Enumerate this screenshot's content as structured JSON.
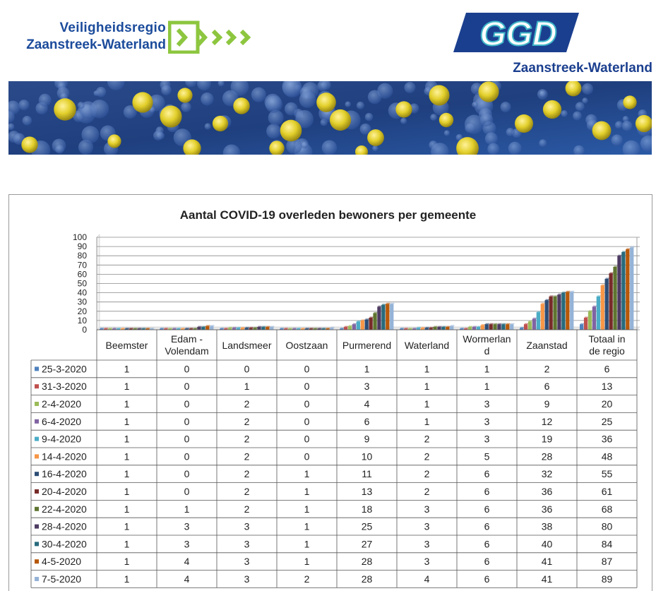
{
  "header": {
    "left_logo": {
      "line1": "Veiligheidsregio",
      "line2": "Zaanstreek-Waterland"
    },
    "right_logo": {
      "mark": "GGD",
      "subtitle": "Zaanstreek-Waterland"
    }
  },
  "colors": {
    "brand_blue": "#1b4b9b",
    "brand_green": "#8dc63f",
    "ggd_blue": "#1b3f8f",
    "ggd_teal": "#3fb6c8"
  },
  "chart_data": {
    "type": "bar",
    "title": "Aantal COVID-19  overleden bewoners per gemeente",
    "categories": [
      "Beemster",
      "Edam -Volendam",
      "Landsmeer",
      "Oostzaan",
      "Purmerend",
      "Waterland",
      "Wormerland",
      "Zaanstad",
      "Totaal in de regio"
    ],
    "category_display": [
      [
        "Beemster"
      ],
      [
        "Edam -",
        "Volendam"
      ],
      [
        "Landsmeer"
      ],
      [
        "Oostzaan"
      ],
      [
        "Purmerend"
      ],
      [
        "Waterland"
      ],
      [
        "Wormerlan",
        "d"
      ],
      [
        "Zaanstad"
      ],
      [
        "Totaal in",
        "de regio"
      ]
    ],
    "yticks": [
      0,
      10,
      20,
      30,
      40,
      50,
      60,
      70,
      80,
      90,
      100
    ],
    "ylim": [
      0,
      100
    ],
    "xlabel": "",
    "ylabel": "",
    "grid": true,
    "series": [
      {
        "name": "25-3-2020",
        "color": "#4f81bd",
        "values": [
          1,
          0,
          0,
          0,
          1,
          1,
          1,
          2,
          6
        ]
      },
      {
        "name": "31-3-2020",
        "color": "#c0504d",
        "values": [
          1,
          0,
          1,
          0,
          3,
          1,
          1,
          6,
          13
        ]
      },
      {
        "name": "2-4-2020",
        "color": "#9bbb59",
        "values": [
          1,
          0,
          2,
          0,
          4,
          1,
          3,
          9,
          20
        ]
      },
      {
        "name": "6-4-2020",
        "color": "#8064a2",
        "values": [
          1,
          0,
          2,
          0,
          6,
          1,
          3,
          12,
          25
        ]
      },
      {
        "name": "9-4-2020",
        "color": "#4bacc6",
        "values": [
          1,
          0,
          2,
          0,
          9,
          2,
          3,
          19,
          36
        ]
      },
      {
        "name": "14-4-2020",
        "color": "#f79646",
        "values": [
          1,
          0,
          2,
          0,
          10,
          2,
          5,
          28,
          48
        ]
      },
      {
        "name": "16-4-2020",
        "color": "#2c4d75",
        "values": [
          1,
          0,
          2,
          1,
          11,
          2,
          6,
          32,
          55
        ]
      },
      {
        "name": "20-4-2020",
        "color": "#772c2a",
        "values": [
          1,
          0,
          2,
          1,
          13,
          2,
          6,
          36,
          61
        ]
      },
      {
        "name": "22-4-2020",
        "color": "#5f7530",
        "values": [
          1,
          1,
          2,
          1,
          18,
          3,
          6,
          36,
          68
        ]
      },
      {
        "name": "28-4-2020",
        "color": "#4d3b62",
        "values": [
          1,
          3,
          3,
          1,
          25,
          3,
          6,
          38,
          80
        ]
      },
      {
        "name": "30-4-2020",
        "color": "#276a7c",
        "values": [
          1,
          3,
          3,
          1,
          27,
          3,
          6,
          40,
          84
        ]
      },
      {
        "name": "4-5-2020",
        "color": "#b65708",
        "values": [
          1,
          4,
          3,
          1,
          28,
          3,
          6,
          41,
          87
        ]
      },
      {
        "name": "7-5-2020",
        "color": "#95b3d7",
        "values": [
          1,
          4,
          3,
          2,
          28,
          4,
          6,
          41,
          89
        ]
      }
    ]
  }
}
